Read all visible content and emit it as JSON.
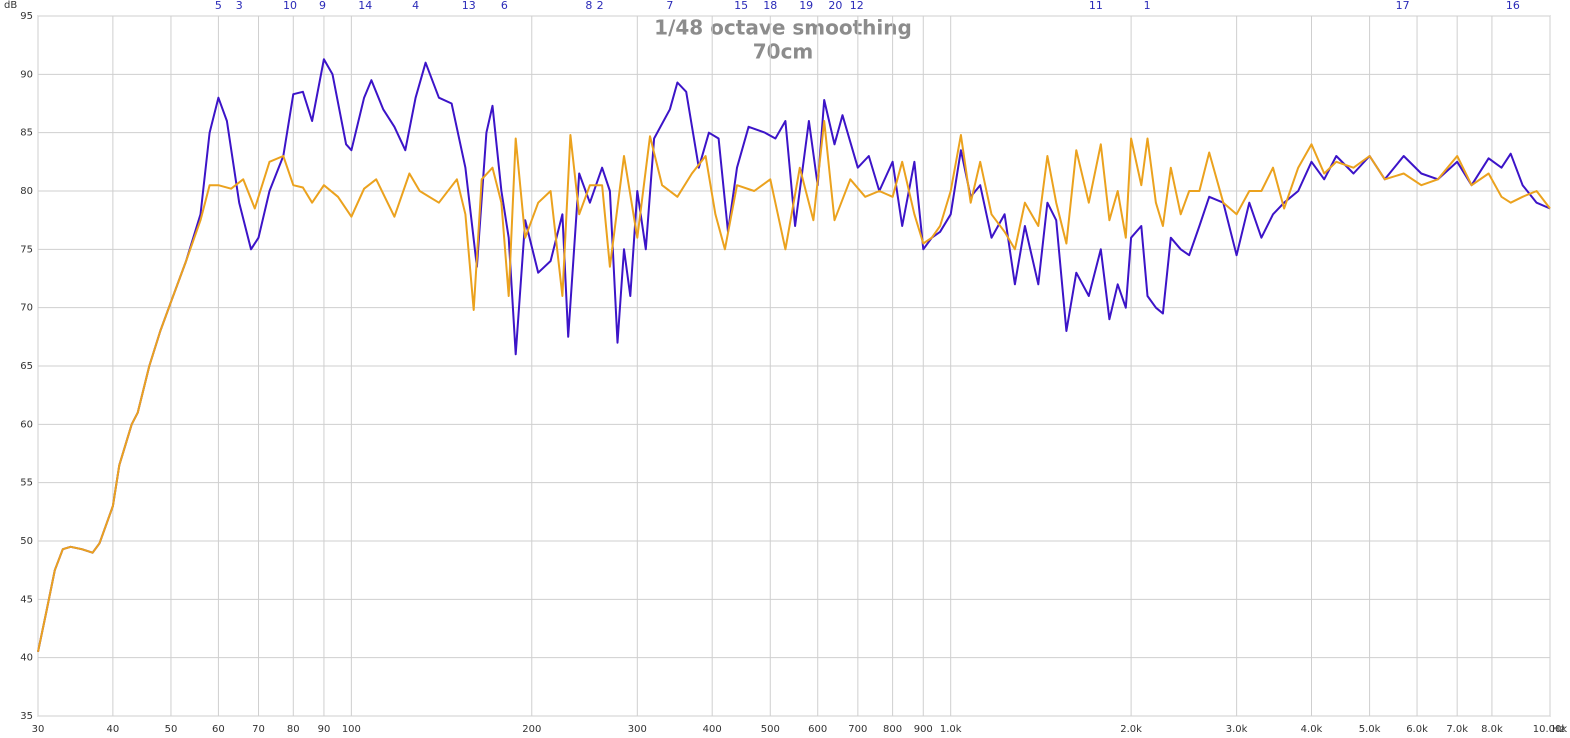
{
  "chart_data": {
    "type": "line",
    "title": "1/48 octave smoothing",
    "subtitle": "70cm",
    "xlabel": "Hz",
    "ylabel": "dB",
    "xscale": "log",
    "grid": true,
    "xlim": [
      30,
      10000
    ],
    "ylim": [
      35,
      95
    ],
    "yticks": [
      35,
      40,
      45,
      50,
      55,
      60,
      65,
      70,
      75,
      80,
      85,
      90,
      95
    ],
    "xticks": [
      30,
      40,
      50,
      60,
      70,
      80,
      90,
      100,
      200,
      300,
      400,
      500,
      600,
      700,
      800,
      900,
      {
        "value": 1000,
        "label": "1.0k"
      },
      {
        "value": 2000,
        "label": "2.0k"
      },
      {
        "value": 3000,
        "label": "3.0k"
      },
      {
        "value": 4000,
        "label": "4.0k"
      },
      {
        "value": 5000,
        "label": "5.0k"
      },
      {
        "value": 6000,
        "label": "6.0k"
      },
      {
        "value": 7000,
        "label": "7.0k"
      },
      {
        "value": 8000,
        "label": "8.0k"
      },
      {
        "value": 10000,
        "label": "10.00k"
      }
    ],
    "annotations": [
      {
        "text": "5",
        "x": 60
      },
      {
        "text": "3",
        "x": 65
      },
      {
        "text": "10",
        "x": 79
      },
      {
        "text": "9",
        "x": 89.5
      },
      {
        "text": "14",
        "x": 105.5
      },
      {
        "text": "4",
        "x": 128
      },
      {
        "text": "13",
        "x": 157
      },
      {
        "text": "6",
        "x": 180
      },
      {
        "text": "8",
        "x": 249
      },
      {
        "text": "2",
        "x": 260
      },
      {
        "text": "7",
        "x": 340
      },
      {
        "text": "15",
        "x": 447
      },
      {
        "text": "18",
        "x": 500
      },
      {
        "text": "19",
        "x": 574
      },
      {
        "text": "20",
        "x": 642
      },
      {
        "text": "12",
        "x": 697
      },
      {
        "text": "11",
        "x": 1747
      },
      {
        "text": "1",
        "x": 2127
      },
      {
        "text": "17",
        "x": 5677
      },
      {
        "text": "16",
        "x": 8670
      }
    ],
    "series": [
      {
        "color": "#3c14c8",
        "x": [
          30,
          31,
          32,
          33,
          34,
          35.5,
          37,
          38,
          40,
          41,
          43,
          44,
          46,
          48,
          50,
          53,
          56,
          58,
          60,
          62,
          65,
          68,
          70,
          73,
          77,
          80,
          83,
          86,
          90,
          93,
          98,
          100,
          105,
          108,
          113,
          118,
          123,
          128,
          133,
          140,
          147,
          155,
          162,
          168,
          172,
          178,
          183,
          188,
          195,
          205,
          215,
          225,
          230,
          240,
          250,
          262,
          270,
          278,
          285,
          292,
          300,
          310,
          320,
          340,
          350,
          362,
          380,
          395,
          410,
          425,
          440,
          460,
          490,
          510,
          530,
          550,
          580,
          600,
          615,
          640,
          660,
          700,
          730,
          760,
          800,
          830,
          870,
          900,
          930,
          960,
          1000,
          1040,
          1080,
          1120,
          1170,
          1230,
          1280,
          1330,
          1400,
          1450,
          1500,
          1560,
          1620,
          1700,
          1780,
          1840,
          1900,
          1960,
          2000,
          2080,
          2130,
          2200,
          2260,
          2330,
          2420,
          2500,
          2600,
          2700,
          2850,
          3000,
          3150,
          3300,
          3450,
          3600,
          3800,
          4000,
          4200,
          4400,
          4700,
          5000,
          5300,
          5700,
          6100,
          6500,
          7000,
          7400,
          7900,
          8300,
          8600,
          9000,
          9500,
          10000
        ],
        "values": [
          40.5,
          44,
          47.5,
          49.3,
          49.5,
          49.3,
          49,
          49.8,
          53,
          56.5,
          60,
          61,
          65,
          68,
          70.5,
          74,
          78,
          85,
          88,
          86,
          79,
          75,
          76,
          80,
          83,
          88.3,
          88.5,
          86,
          91.3,
          90,
          84,
          83.5,
          88,
          89.5,
          87,
          85.5,
          83.5,
          88,
          91,
          88,
          87.5,
          82,
          73.5,
          85,
          87.3,
          80,
          76,
          66,
          77.5,
          73,
          74,
          78,
          67.5,
          81.5,
          79,
          82,
          80,
          67,
          75,
          71,
          80,
          75,
          84.5,
          87,
          89.3,
          88.5,
          82,
          85,
          84.5,
          76.5,
          82,
          85.5,
          85,
          84.5,
          86,
          77,
          86,
          80.5,
          87.8,
          84,
          86.5,
          82,
          83,
          80,
          82.5,
          77,
          82.5,
          75,
          76,
          76.5,
          78,
          83.5,
          79.5,
          80.5,
          76,
          78,
          72,
          77,
          72,
          79,
          77.5,
          68,
          73,
          71,
          75,
          69,
          72,
          70,
          76,
          77,
          71,
          70,
          69.5,
          76,
          75,
          74.5,
          77,
          79.5,
          79,
          74.5,
          79,
          76,
          78,
          79,
          80,
          82.5,
          81,
          83,
          81.5,
          83,
          81,
          83,
          81.5,
          81,
          82.5,
          80.5,
          82.8,
          82,
          83.2,
          80.5,
          79,
          78.5
        ]
      },
      {
        "color": "#eba21e",
        "x": [
          30,
          31,
          32,
          33,
          34,
          35.5,
          37,
          38,
          40,
          41,
          43,
          44,
          46,
          48,
          50,
          53,
          56,
          58,
          60,
          63,
          66,
          69,
          73,
          77,
          80,
          83,
          86,
          90,
          95,
          100,
          105,
          110,
          118,
          125,
          130,
          140,
          150,
          155,
          160,
          165,
          172,
          178,
          183,
          188,
          195,
          205,
          215,
          225,
          232,
          240,
          250,
          262,
          270,
          285,
          300,
          315,
          330,
          350,
          370,
          390,
          405,
          420,
          440,
          470,
          500,
          530,
          560,
          590,
          615,
          640,
          680,
          720,
          760,
          800,
          830,
          870,
          900,
          930,
          960,
          1000,
          1040,
          1080,
          1120,
          1170,
          1230,
          1280,
          1330,
          1400,
          1450,
          1500,
          1560,
          1620,
          1700,
          1780,
          1840,
          1900,
          1960,
          2000,
          2080,
          2130,
          2200,
          2260,
          2330,
          2420,
          2500,
          2600,
          2700,
          2850,
          3000,
          3150,
          3300,
          3450,
          3600,
          3800,
          4000,
          4200,
          4400,
          4700,
          5000,
          5300,
          5700,
          6100,
          6500,
          7000,
          7400,
          7900,
          8300,
          8600,
          9000,
          9500,
          10000
        ],
        "values": [
          40.5,
          44,
          47.5,
          49.3,
          49.5,
          49.3,
          49,
          49.8,
          53,
          56.5,
          60,
          61,
          65,
          68,
          70.5,
          74,
          77.5,
          80.5,
          80.5,
          80.2,
          81,
          78.5,
          82.5,
          83,
          80.5,
          80.3,
          79,
          80.5,
          79.5,
          77.8,
          80.2,
          81,
          77.8,
          81.5,
          80,
          79,
          81,
          78,
          69.8,
          81,
          82,
          79,
          71,
          84.5,
          76,
          79,
          80,
          71,
          84.8,
          78,
          80.5,
          80.5,
          73.5,
          83,
          76,
          84.7,
          80.5,
          79.5,
          81.5,
          83,
          78,
          75,
          80.5,
          80,
          81,
          75,
          82,
          77.5,
          86,
          77.5,
          81,
          79.5,
          80,
          79.5,
          82.5,
          78,
          75.5,
          76,
          77,
          80,
          84.8,
          79,
          82.5,
          78,
          76.5,
          75,
          79,
          77,
          83,
          79,
          75.5,
          83.5,
          79,
          84,
          77.5,
          80,
          76,
          84.5,
          80.5,
          84.5,
          79,
          77,
          82,
          78,
          80,
          80,
          83.3,
          79,
          78,
          80,
          80,
          82,
          78.5,
          82,
          84,
          81.5,
          82.5,
          82,
          83,
          81,
          81.5,
          80.5,
          81,
          83,
          80.5,
          81.5,
          79.5,
          79,
          79.5,
          80,
          78.5
        ]
      }
    ]
  }
}
